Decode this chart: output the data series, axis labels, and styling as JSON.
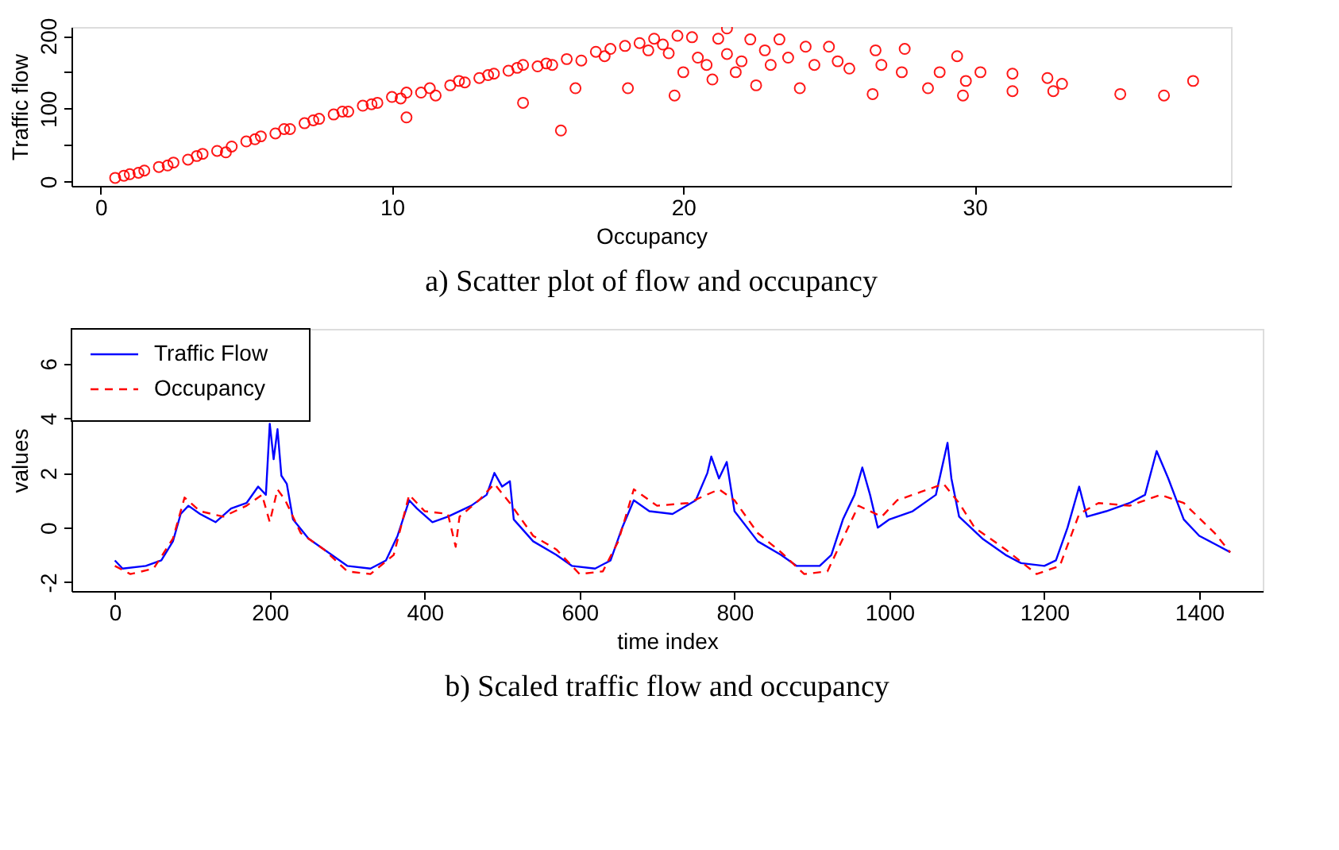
{
  "chart_data": [
    {
      "type": "scatter",
      "title": "a) Scatter plot of flow and occupancy",
      "xlabel": "Occupancy",
      "ylabel": "Traffic flow",
      "marker": "circle",
      "color": "#ff0000",
      "grid": false,
      "x": [
        0.5,
        0.8,
        1,
        1.3,
        1.5,
        2,
        2.3,
        2.5,
        3,
        3.3,
        3.5,
        4,
        4.3,
        4.5,
        5,
        5.3,
        5.5,
        6,
        6.3,
        6.5,
        7,
        7.3,
        7.5,
        8,
        8.3,
        8.5,
        9,
        9.3,
        9.5,
        10,
        10.3,
        10.5,
        10.5,
        11,
        11.3,
        11.5,
        12,
        12.3,
        12.5,
        13,
        13.3,
        13.5,
        14,
        14.3,
        14.5,
        14.5,
        15,
        15.3,
        15.5,
        15.8,
        16,
        16.3,
        16.5,
        17,
        17.3,
        17.5,
        18,
        18.1,
        18.5,
        18.8,
        19,
        19.3,
        19.5,
        19.7,
        19.8,
        20,
        20.3,
        20.5,
        20.8,
        21,
        21.2,
        21.5,
        21.5,
        21.8,
        22,
        22.3,
        22.5,
        22.8,
        23,
        23.3,
        23.6,
        24,
        24.2,
        24.5,
        25,
        25.3,
        25.7,
        26.5,
        26.6,
        26.8,
        27.5,
        27.6,
        28.4,
        28.8,
        29.4,
        29.6,
        29.7,
        30.2,
        31.3,
        31.3,
        32.5,
        32.7,
        33,
        35,
        36.5,
        37.5
      ],
      "values": [
        5,
        8,
        10,
        12,
        15,
        20,
        22,
        26,
        30,
        35,
        38,
        42,
        40,
        48,
        55,
        58,
        62,
        66,
        72,
        72,
        80,
        84,
        86,
        92,
        96,
        96,
        104,
        106,
        108,
        116,
        114,
        88,
        122,
        122,
        128,
        118,
        132,
        138,
        136,
        142,
        146,
        148,
        152,
        156,
        108,
        160,
        158,
        162,
        160,
        70,
        168,
        128,
        166,
        178,
        172,
        182,
        186,
        128,
        190,
        180,
        196,
        188,
        176,
        118,
        200,
        150,
        198,
        170,
        160,
        140,
        196,
        210,
        175,
        150,
        165,
        195,
        132,
        180,
        160,
        195,
        170,
        128,
        185,
        160,
        185,
        165,
        155,
        120,
        180,
        160,
        150,
        182,
        128,
        150,
        172,
        118,
        138,
        150,
        148,
        124,
        142,
        124,
        134,
        120,
        118,
        138
      ],
      "xlim": [
        -1,
        38.8
      ],
      "ylim": [
        -6,
        212
      ],
      "xticks": [
        0,
        10,
        20,
        30
      ],
      "yticks": [
        0,
        {
          "value": 50,
          "label": null
        },
        100,
        {
          "value": 150,
          "label": null
        },
        200
      ]
    },
    {
      "type": "line",
      "title": "b) Scaled traffic flow and occupancy",
      "xlabel": "time index",
      "ylabel": "values",
      "grid": false,
      "legend": "top left",
      "xlim": [
        -56,
        1482
      ],
      "ylim": [
        -2.32,
        7.27
      ],
      "xticks": [
        0,
        200,
        400,
        600,
        800,
        1000,
        1200,
        1400
      ],
      "yticks": [
        -2,
        0,
        2,
        4,
        6
      ],
      "series": [
        {
          "name": "Traffic Flow",
          "color": "#0000ff",
          "line_style": "solid",
          "x": [
            0,
            10,
            40,
            60,
            75,
            85,
            95,
            110,
            130,
            150,
            170,
            185,
            195,
            200,
            205,
            210,
            215,
            222,
            230,
            250,
            280,
            300,
            330,
            350,
            365,
            380,
            390,
            410,
            430,
            460,
            480,
            490,
            500,
            510,
            515,
            540,
            570,
            590,
            620,
            640,
            655,
            670,
            690,
            720,
            750,
            765,
            770,
            780,
            790,
            800,
            830,
            860,
            880,
            910,
            925,
            940,
            955,
            965,
            975,
            985,
            1000,
            1030,
            1060,
            1075,
            1080,
            1090,
            1120,
            1150,
            1170,
            1200,
            1215,
            1230,
            1245,
            1255,
            1280,
            1310,
            1330,
            1345,
            1360,
            1380,
            1400,
            1420,
            1440
          ],
          "values": [
            -1.2,
            -1.5,
            -1.4,
            -1.2,
            -0.5,
            0.5,
            0.8,
            0.5,
            0.2,
            0.7,
            0.9,
            1.5,
            1.2,
            3.8,
            2.5,
            3.6,
            1.9,
            1.6,
            0.3,
            -0.4,
            -1.0,
            -1.4,
            -1.5,
            -1.2,
            -0.3,
            1.0,
            0.7,
            0.2,
            0.4,
            0.8,
            1.2,
            2.0,
            1.5,
            1.7,
            0.3,
            -0.5,
            -1.0,
            -1.4,
            -1.5,
            -1.2,
            0.0,
            1.0,
            0.6,
            0.5,
            1.0,
            2.0,
            2.6,
            1.8,
            2.4,
            0.6,
            -0.5,
            -1.0,
            -1.4,
            -1.4,
            -1.0,
            0.3,
            1.2,
            2.2,
            1.2,
            0.0,
            0.3,
            0.6,
            1.2,
            3.1,
            1.8,
            0.4,
            -0.4,
            -1.0,
            -1.3,
            -1.4,
            -1.2,
            0.0,
            1.5,
            0.4,
            0.6,
            0.9,
            1.2,
            2.8,
            1.8,
            0.3,
            -0.3,
            -0.6,
            -0.9
          ]
        },
        {
          "name": "Occupancy",
          "color": "#ff0000",
          "line_style": "dashed",
          "x": [
            0,
            20,
            50,
            75,
            90,
            110,
            140,
            170,
            190,
            200,
            210,
            220,
            240,
            270,
            300,
            330,
            360,
            380,
            400,
            430,
            440,
            445,
            470,
            490,
            510,
            540,
            570,
            600,
            630,
            650,
            670,
            700,
            740,
            780,
            800,
            830,
            860,
            890,
            920,
            940,
            960,
            990,
            1010,
            1040,
            1070,
            1090,
            1110,
            1150,
            1190,
            1220,
            1245,
            1270,
            1310,
            1350,
            1380,
            1420,
            1440
          ],
          "values": [
            -1.4,
            -1.7,
            -1.5,
            -0.4,
            1.1,
            0.6,
            0.4,
            0.8,
            1.2,
            0.2,
            1.4,
            1.0,
            -0.2,
            -0.8,
            -1.6,
            -1.7,
            -1.0,
            1.2,
            0.6,
            0.5,
            -0.7,
            0.4,
            1.0,
            1.6,
            0.9,
            -0.3,
            -0.8,
            -1.7,
            -1.6,
            -0.5,
            1.4,
            0.8,
            0.9,
            1.4,
            1.0,
            -0.2,
            -0.9,
            -1.7,
            -1.6,
            -0.4,
            0.8,
            0.4,
            1.0,
            1.3,
            1.6,
            0.9,
            0.0,
            -0.8,
            -1.7,
            -1.4,
            0.5,
            0.9,
            0.8,
            1.2,
            0.9,
            -0.2,
            -0.9
          ]
        }
      ]
    }
  ]
}
